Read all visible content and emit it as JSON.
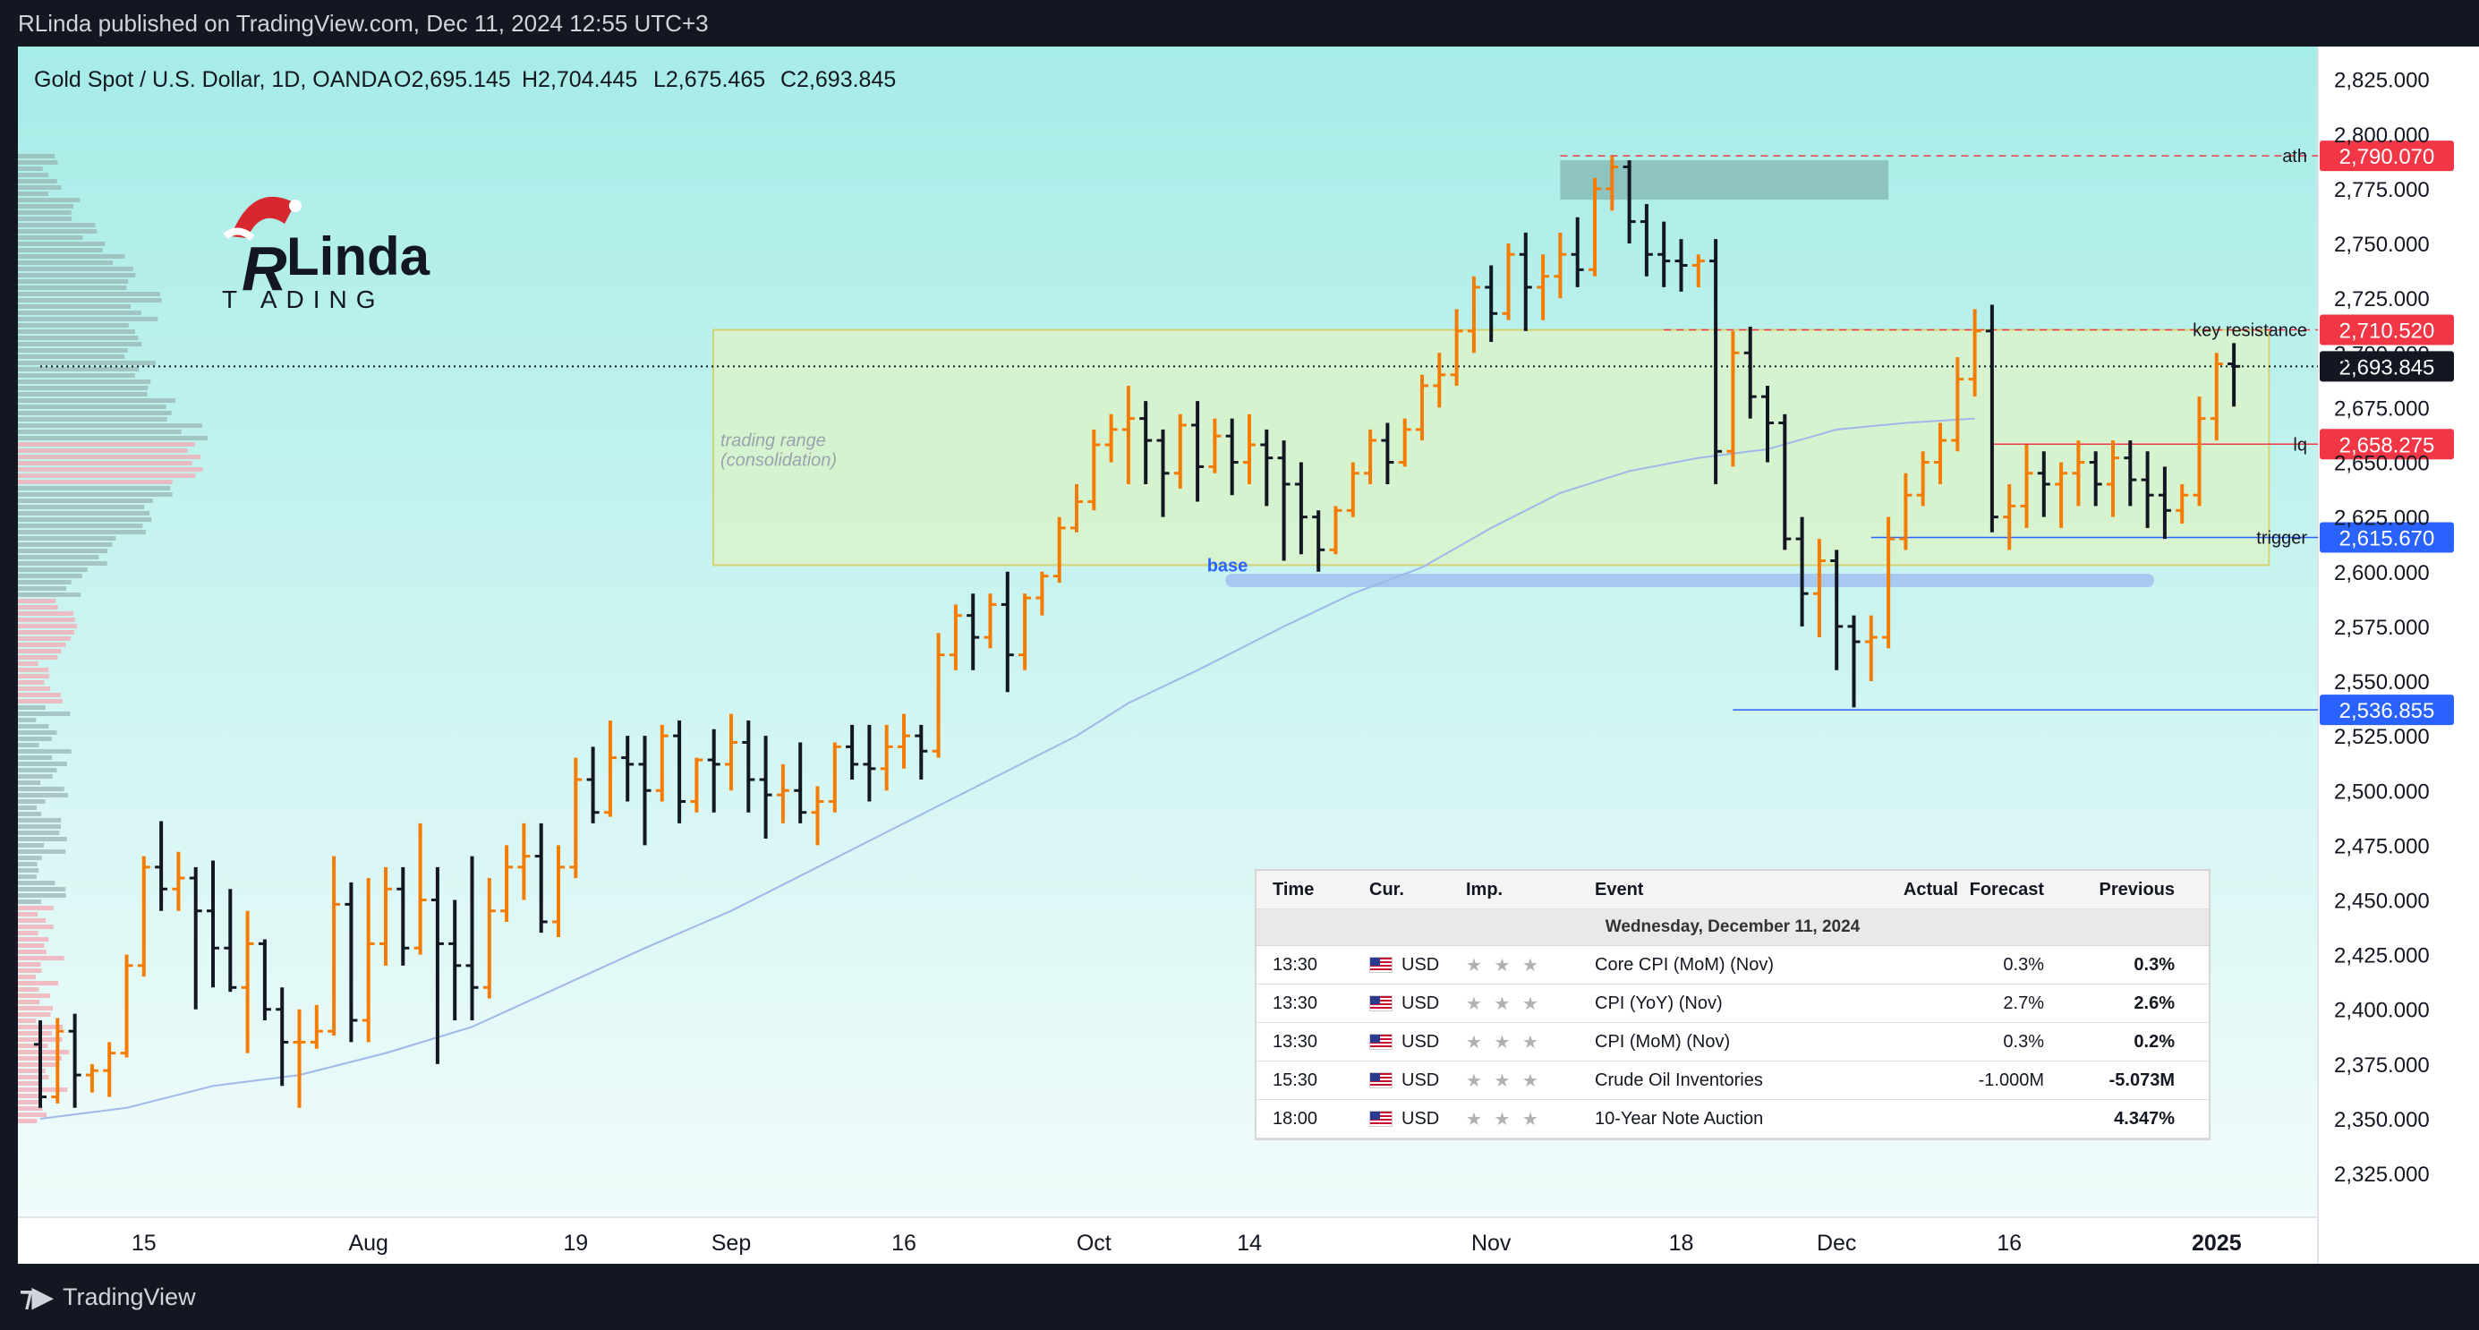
{
  "header": {
    "published": "RLinda published on TradingView.com, Dec 11, 2024 12:55 UTC+3"
  },
  "footer": {
    "brand": "TradingView"
  },
  "logo": {
    "text_main": "Linda",
    "text_sub": "T   ADING",
    "letter_r": "R"
  },
  "colors": {
    "bg_top": "#a6ece7",
    "bg_bottom": "#f1fcfb",
    "bar_up": "#f57c00",
    "bar_down": "#131722",
    "ma": "#9fb8e8",
    "range_fill": "#d9f4cd",
    "range_stroke": "#d8cf6a",
    "red_label": "#f23645",
    "blue_label": "#2962ff",
    "dark_label": "#131722"
  },
  "chart_data": {
    "type": "ohlc",
    "title": "Gold Spot / U.S. Dollar, 1D, OANDA",
    "ohlc_label": {
      "o": "O2,695.145",
      "h": "H2,704.445",
      "l": "L2,675.465",
      "c": "C2,693.845"
    },
    "ylim": [
      2305,
      2840
    ],
    "y_ticks": [
      "2,825.000",
      "2,800.000",
      "2,775.000",
      "2,750.000",
      "2,725.000",
      "2,700.000",
      "2,675.000",
      "2,650.000",
      "2,625.000",
      "2,600.000",
      "2,575.000",
      "2,550.000",
      "2,525.000",
      "2,500.000",
      "2,475.000",
      "2,450.000",
      "2,425.000",
      "2,400.000",
      "2,375.000",
      "2,350.000",
      "2,325.000"
    ],
    "x_ticks": [
      {
        "label": "15",
        "bar": 6
      },
      {
        "label": "Aug",
        "bar": 19
      },
      {
        "label": "19",
        "bar": 31
      },
      {
        "label": "Sep",
        "bar": 40
      },
      {
        "label": "16",
        "bar": 50
      },
      {
        "label": "Oct",
        "bar": 61
      },
      {
        "label": "14",
        "bar": 70
      },
      {
        "label": "Nov",
        "bar": 84
      },
      {
        "label": "18",
        "bar": 95
      },
      {
        "label": "Dec",
        "bar": 104
      },
      {
        "label": "16",
        "bar": 114
      },
      {
        "label": "2025",
        "bar": 126
      }
    ],
    "bars": [
      [
        2384,
        2395,
        2355,
        2360
      ],
      [
        2360,
        2396,
        2357,
        2390
      ],
      [
        2390,
        2398,
        2355,
        2370
      ],
      [
        2370,
        2375,
        2362,
        2372
      ],
      [
        2372,
        2385,
        2360,
        2380
      ],
      [
        2380,
        2425,
        2378,
        2420
      ],
      [
        2420,
        2470,
        2415,
        2465
      ],
      [
        2465,
        2486,
        2445,
        2455
      ],
      [
        2455,
        2472,
        2445,
        2460
      ],
      [
        2460,
        2465,
        2400,
        2445
      ],
      [
        2445,
        2468,
        2410,
        2428
      ],
      [
        2428,
        2455,
        2408,
        2410
      ],
      [
        2410,
        2445,
        2380,
        2430
      ],
      [
        2430,
        2432,
        2395,
        2400
      ],
      [
        2400,
        2410,
        2365,
        2385
      ],
      [
        2385,
        2400,
        2355,
        2385
      ],
      [
        2385,
        2402,
        2382,
        2390
      ],
      [
        2390,
        2470,
        2388,
        2448
      ],
      [
        2448,
        2458,
        2385,
        2395
      ],
      [
        2395,
        2460,
        2385,
        2430
      ],
      [
        2430,
        2465,
        2420,
        2455
      ],
      [
        2455,
        2465,
        2420,
        2428
      ],
      [
        2428,
        2485,
        2425,
        2450
      ],
      [
        2450,
        2465,
        2375,
        2430
      ],
      [
        2430,
        2450,
        2395,
        2420
      ],
      [
        2420,
        2470,
        2395,
        2410
      ],
      [
        2410,
        2460,
        2405,
        2445
      ],
      [
        2445,
        2475,
        2440,
        2465
      ],
      [
        2465,
        2485,
        2450,
        2470
      ],
      [
        2470,
        2485,
        2435,
        2440
      ],
      [
        2440,
        2475,
        2433,
        2465
      ],
      [
        2465,
        2515,
        2460,
        2505
      ],
      [
        2505,
        2520,
        2485,
        2490
      ],
      [
        2490,
        2532,
        2488,
        2515
      ],
      [
        2515,
        2525,
        2495,
        2512
      ],
      [
        2512,
        2525,
        2475,
        2500
      ],
      [
        2500,
        2530,
        2495,
        2525
      ],
      [
        2525,
        2532,
        2485,
        2495
      ],
      [
        2495,
        2515,
        2490,
        2514
      ],
      [
        2514,
        2528,
        2490,
        2512
      ],
      [
        2512,
        2535,
        2500,
        2522
      ],
      [
        2522,
        2532,
        2490,
        2505
      ],
      [
        2505,
        2525,
        2478,
        2498
      ],
      [
        2498,
        2512,
        2485,
        2500
      ],
      [
        2500,
        2522,
        2485,
        2490
      ],
      [
        2490,
        2502,
        2475,
        2495
      ],
      [
        2495,
        2522,
        2490,
        2520
      ],
      [
        2520,
        2530,
        2505,
        2512
      ],
      [
        2512,
        2530,
        2495,
        2510
      ],
      [
        2510,
        2530,
        2500,
        2520
      ],
      [
        2520,
        2535,
        2510,
        2525
      ],
      [
        2525,
        2530,
        2505,
        2518
      ],
      [
        2518,
        2572,
        2515,
        2562
      ],
      [
        2562,
        2585,
        2555,
        2580
      ],
      [
        2580,
        2590,
        2555,
        2570
      ],
      [
        2570,
        2590,
        2565,
        2585
      ],
      [
        2585,
        2600,
        2545,
        2562
      ],
      [
        2562,
        2590,
        2555,
        2588
      ],
      [
        2588,
        2600,
        2580,
        2598
      ],
      [
        2598,
        2625,
        2595,
        2620
      ],
      [
        2620,
        2640,
        2618,
        2632
      ],
      [
        2632,
        2665,
        2628,
        2658
      ],
      [
        2658,
        2672,
        2650,
        2665
      ],
      [
        2665,
        2685,
        2640,
        2670
      ],
      [
        2670,
        2678,
        2640,
        2660
      ],
      [
        2660,
        2665,
        2625,
        2645
      ],
      [
        2645,
        2672,
        2638,
        2667
      ],
      [
        2667,
        2678,
        2632,
        2648
      ],
      [
        2648,
        2670,
        2645,
        2662
      ],
      [
        2662,
        2670,
        2635,
        2650
      ],
      [
        2650,
        2672,
        2640,
        2658
      ],
      [
        2658,
        2665,
        2630,
        2652
      ],
      [
        2652,
        2660,
        2605,
        2640
      ],
      [
        2640,
        2650,
        2608,
        2625
      ],
      [
        2625,
        2628,
        2600,
        2610
      ],
      [
        2610,
        2630,
        2608,
        2628
      ],
      [
        2628,
        2650,
        2625,
        2645
      ],
      [
        2645,
        2665,
        2640,
        2660
      ],
      [
        2660,
        2668,
        2640,
        2650
      ],
      [
        2650,
        2670,
        2648,
        2665
      ],
      [
        2665,
        2690,
        2660,
        2685
      ],
      [
        2685,
        2700,
        2675,
        2690
      ],
      [
        2690,
        2720,
        2685,
        2710
      ],
      [
        2710,
        2735,
        2700,
        2730
      ],
      [
        2730,
        2740,
        2705,
        2718
      ],
      [
        2718,
        2750,
        2715,
        2745
      ],
      [
        2745,
        2755,
        2710,
        2730
      ],
      [
        2730,
        2745,
        2715,
        2735
      ],
      [
        2735,
        2755,
        2725,
        2745
      ],
      [
        2745,
        2762,
        2730,
        2738
      ],
      [
        2738,
        2780,
        2735,
        2775
      ],
      [
        2775,
        2790,
        2765,
        2785
      ],
      [
        2785,
        2788,
        2750,
        2760
      ],
      [
        2760,
        2768,
        2735,
        2745
      ],
      [
        2745,
        2760,
        2730,
        2742
      ],
      [
        2742,
        2752,
        2728,
        2740
      ],
      [
        2740,
        2745,
        2730,
        2742
      ],
      [
        2742,
        2752,
        2640,
        2655
      ],
      [
        2655,
        2710,
        2648,
        2700
      ],
      [
        2700,
        2712,
        2670,
        2680
      ],
      [
        2680,
        2685,
        2650,
        2668
      ],
      [
        2668,
        2672,
        2610,
        2615
      ],
      [
        2615,
        2625,
        2575,
        2590
      ],
      [
        2590,
        2615,
        2570,
        2605
      ],
      [
        2605,
        2610,
        2555,
        2575
      ],
      [
        2575,
        2580,
        2538,
        2568
      ],
      [
        2568,
        2580,
        2550,
        2570
      ],
      [
        2570,
        2625,
        2565,
        2615
      ],
      [
        2615,
        2645,
        2610,
        2635
      ],
      [
        2635,
        2655,
        2630,
        2650
      ],
      [
        2650,
        2668,
        2640,
        2660
      ],
      [
        2660,
        2698,
        2655,
        2688
      ],
      [
        2688,
        2720,
        2680,
        2710
      ],
      [
        2710,
        2722,
        2618,
        2625
      ],
      [
        2625,
        2640,
        2610,
        2630
      ],
      [
        2630,
        2658,
        2620,
        2645
      ],
      [
        2645,
        2655,
        2625,
        2640
      ],
      [
        2640,
        2650,
        2620,
        2645
      ],
      [
        2645,
        2660,
        2630,
        2650
      ],
      [
        2650,
        2655,
        2630,
        2640
      ],
      [
        2640,
        2660,
        2625,
        2652
      ],
      [
        2652,
        2660,
        2630,
        2642
      ],
      [
        2642,
        2655,
        2620,
        2635
      ],
      [
        2635,
        2648,
        2615,
        2628
      ],
      [
        2628,
        2640,
        2622,
        2635
      ],
      [
        2635,
        2680,
        2630,
        2670
      ],
      [
        2670,
        2700,
        2660,
        2695
      ],
      [
        2695,
        2704.445,
        2675.465,
        2693.845
      ]
    ],
    "moving_average": [
      [
        0,
        2350
      ],
      [
        5,
        2355
      ],
      [
        10,
        2365
      ],
      [
        15,
        2370
      ],
      [
        20,
        2380
      ],
      [
        25,
        2392
      ],
      [
        30,
        2410
      ],
      [
        35,
        2428
      ],
      [
        40,
        2445
      ],
      [
        45,
        2465
      ],
      [
        50,
        2485
      ],
      [
        55,
        2505
      ],
      [
        60,
        2525
      ],
      [
        63,
        2540
      ],
      [
        67,
        2555
      ],
      [
        72,
        2575
      ],
      [
        76,
        2590
      ],
      [
        80,
        2602
      ],
      [
        84,
        2620
      ],
      [
        88,
        2636
      ],
      [
        92,
        2646
      ],
      [
        96,
        2652
      ],
      [
        100,
        2656
      ],
      [
        104,
        2665
      ],
      [
        108,
        2668
      ],
      [
        112,
        2670
      ]
    ],
    "levels": [
      {
        "name": "ath",
        "label": "ath",
        "price_label": "2,790.070",
        "value": 2790.07,
        "style": "red-dashed",
        "from_bar": 88
      },
      {
        "name": "key-resistance",
        "label": "key resistance",
        "price_label": "2,710.520",
        "value": 2710.52,
        "style": "red-dashed",
        "from_bar": 94
      },
      {
        "name": "current",
        "label": "",
        "price_label": "2,693.845",
        "value": 2693.845,
        "style": "black-dotted",
        "from_bar": 0
      },
      {
        "name": "lq",
        "label": "lq",
        "price_label": "2,658.275",
        "value": 2658.275,
        "style": "red-solid",
        "from_bar": 113
      },
      {
        "name": "trigger",
        "label": "trigger",
        "price_label": "2,615.670",
        "value": 2615.67,
        "style": "blue-solid",
        "from_bar": 106
      },
      {
        "name": "support",
        "label": "",
        "price_label": "2,536.855",
        "value": 2536.855,
        "style": "blue-solid",
        "from_bar": 98
      }
    ],
    "zones": [
      {
        "name": "trading-range",
        "label1": "trading range",
        "label2": "(consolidation)",
        "from_bar": 40,
        "to_bar": 128,
        "top": 2710.52,
        "bottom": 2603
      },
      {
        "name": "ath-box",
        "from_bar": 88,
        "to_bar": 107,
        "top": 2788,
        "bottom": 2770
      }
    ],
    "base": {
      "label": "base",
      "from_bar": 69,
      "to_bar": 122,
      "value": 2596
    }
  },
  "calendar": {
    "headers": {
      "time": "Time",
      "cur": "Cur.",
      "imp": "Imp.",
      "event": "Event",
      "actual": "Actual",
      "forecast": "Forecast",
      "previous": "Previous"
    },
    "date": "Wednesday, December 11, 2024",
    "rows": [
      {
        "time": "13:30",
        "cur": "USD",
        "imp": "★ ★ ★",
        "event": "Core CPI (MoM) (Nov)",
        "actual": "",
        "forecast": "0.3%",
        "previous": "0.3%"
      },
      {
        "time": "13:30",
        "cur": "USD",
        "imp": "★ ★ ★",
        "event": "CPI (YoY) (Nov)",
        "actual": "",
        "forecast": "2.7%",
        "previous": "2.6%"
      },
      {
        "time": "13:30",
        "cur": "USD",
        "imp": "★ ★ ★",
        "event": "CPI (MoM) (Nov)",
        "actual": "",
        "forecast": "0.3%",
        "previous": "0.2%"
      },
      {
        "time": "15:30",
        "cur": "USD",
        "imp": "★ ★ ★",
        "event": "Crude Oil Inventories",
        "actual": "",
        "forecast": "-1.000M",
        "previous": "-5.073M"
      },
      {
        "time": "18:00",
        "cur": "USD",
        "imp": "★ ★ ★",
        "event": "10-Year Note Auction",
        "actual": "",
        "forecast": "",
        "previous": "4.347%"
      }
    ]
  }
}
